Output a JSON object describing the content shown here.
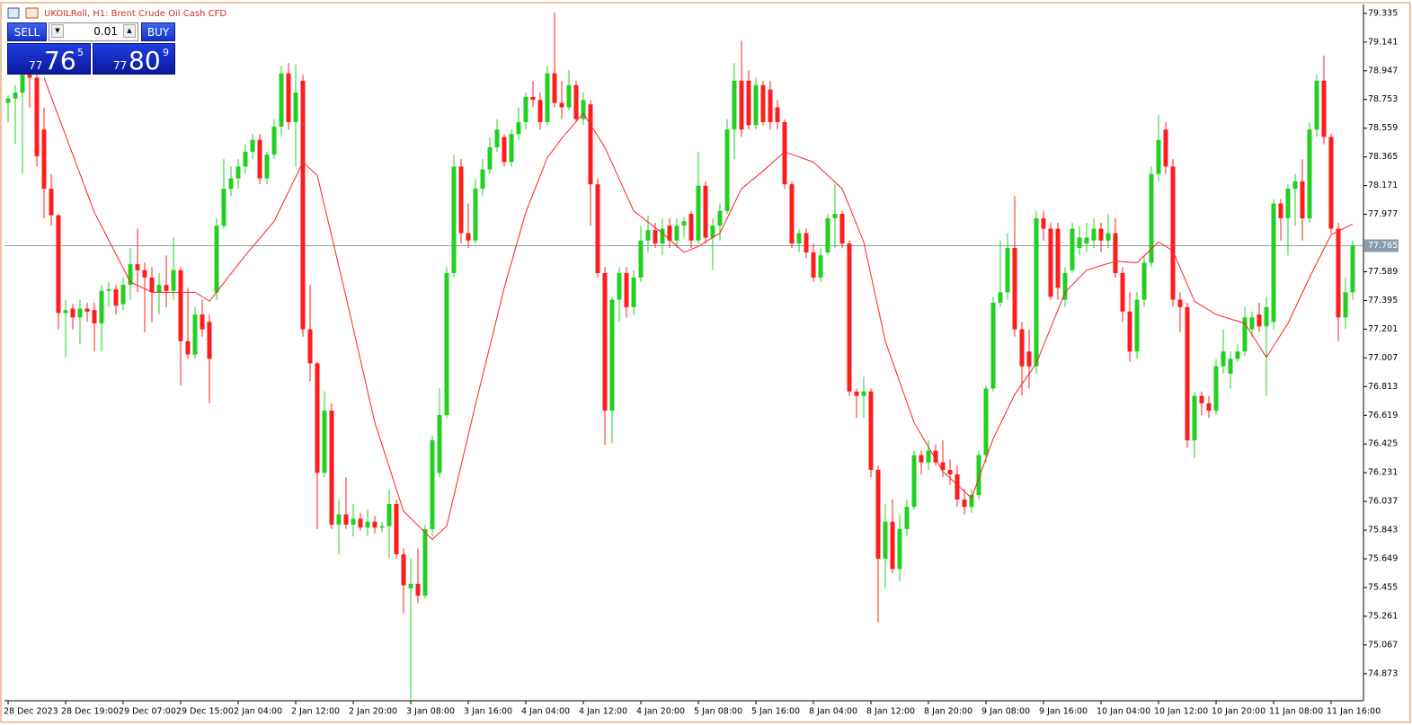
{
  "chart_data": {
    "type": "candlestick",
    "title": "UKOILRoll, H1:  Brent Crude Oil Cash CFD",
    "up_color": "#22d022",
    "down_color": "#ff1c1c",
    "ylim": [
      74.69,
      79.395
    ],
    "yticks": [
      79.335,
      79.141,
      78.947,
      78.753,
      78.559,
      78.365,
      78.171,
      77.977,
      77.589,
      77.395,
      77.201,
      77.007,
      76.813,
      76.619,
      76.425,
      76.231,
      76.037,
      75.843,
      75.649,
      75.455,
      75.261,
      75.067,
      74.873
    ],
    "grid": false,
    "price_line": {
      "value": 77.765,
      "color": "#8a9bab"
    },
    "categories": [
      "28 Dec 2023",
      null,
      null,
      null,
      null,
      null,
      null,
      null,
      "28 Dec 19:00",
      null,
      null,
      null,
      null,
      null,
      null,
      null,
      "29 Dec 07:00",
      null,
      null,
      null,
      null,
      null,
      null,
      null,
      "29 Dec 15:00",
      null,
      null,
      null,
      null,
      null,
      null,
      null,
      "2 Jan 04:00",
      null,
      null,
      null,
      null,
      null,
      null,
      null,
      "2 Jan 12:00",
      null,
      null,
      null,
      null,
      null,
      null,
      null,
      "2 Jan 20:00",
      null,
      null,
      null,
      null,
      null,
      null,
      null,
      "3 Jan 08:00",
      null,
      null,
      null,
      null,
      null,
      null,
      null,
      "3 Jan 16:00",
      null,
      null,
      null,
      null,
      null,
      null,
      null,
      "4 Jan 04:00",
      null,
      null,
      null,
      null,
      null,
      null,
      null,
      "4 Jan 12:00",
      null,
      null,
      null,
      null,
      null,
      null,
      null,
      "4 Jan 20:00",
      null,
      null,
      null,
      null,
      null,
      null,
      null,
      "5 Jan 08:00",
      null,
      null,
      null,
      null,
      null,
      null,
      null,
      "5 Jan 16:00",
      null,
      null,
      null,
      null,
      null,
      null,
      null,
      "8 Jan 04:00",
      null,
      null,
      null,
      null,
      null,
      null,
      null,
      "8 Jan 12:00",
      null,
      null,
      null,
      null,
      null,
      null,
      null,
      "8 Jan 20:00",
      null,
      null,
      null,
      null,
      null,
      null,
      null,
      "9 Jan 08:00",
      null,
      null,
      null,
      null,
      null,
      null,
      null,
      "9 Jan 16:00",
      null,
      null,
      null,
      null,
      null,
      null,
      null,
      "10 Jan 04:00",
      null,
      null,
      null,
      null,
      null,
      null,
      null,
      "10 Jan 12:00",
      null,
      null,
      null,
      null,
      null,
      null,
      null,
      "10 Jan 20:00",
      null,
      null,
      null,
      null,
      null,
      null,
      null,
      "11 Jan 08:00",
      null,
      null,
      null,
      null,
      null,
      null,
      null,
      "11 Jan 16:00",
      null,
      null,
      null
    ],
    "ohlc": [
      [
        78.73,
        78.78,
        78.6,
        78.76
      ],
      [
        78.76,
        78.85,
        78.45,
        78.8
      ],
      [
        78.8,
        78.95,
        78.25,
        78.92
      ],
      [
        78.92,
        78.95,
        78.7,
        78.9
      ],
      [
        78.9,
        78.93,
        78.3,
        78.37
      ],
      [
        78.55,
        78.7,
        77.95,
        78.15
      ],
      [
        78.15,
        78.25,
        77.9,
        77.97
      ],
      [
        77.97,
        77.98,
        77.2,
        77.31
      ],
      [
        77.31,
        77.4,
        77.01,
        77.33
      ],
      [
        77.34,
        77.37,
        77.2,
        77.28
      ],
      [
        77.28,
        77.4,
        77.1,
        77.34
      ],
      [
        77.34,
        77.38,
        77.25,
        77.32
      ],
      [
        77.33,
        77.38,
        77.05,
        77.24
      ],
      [
        77.24,
        77.5,
        77.05,
        77.46
      ],
      [
        77.46,
        77.52,
        77.35,
        77.47
      ],
      [
        77.47,
        77.5,
        77.3,
        77.36
      ],
      [
        77.37,
        77.55,
        77.33,
        77.5
      ],
      [
        77.5,
        77.75,
        77.4,
        77.64
      ],
      [
        77.64,
        77.88,
        77.45,
        77.6
      ],
      [
        77.6,
        77.65,
        77.18,
        77.55
      ],
      [
        77.55,
        77.62,
        77.25,
        77.45
      ],
      [
        77.45,
        77.58,
        77.3,
        77.5
      ],
      [
        77.5,
        77.7,
        77.35,
        77.46
      ],
      [
        77.46,
        77.82,
        77.4,
        77.6
      ],
      [
        77.6,
        77.62,
        76.82,
        77.12
      ],
      [
        77.12,
        77.48,
        77.0,
        77.03
      ],
      [
        77.03,
        77.35,
        77.0,
        77.3
      ],
      [
        77.3,
        77.4,
        77.15,
        77.2
      ],
      [
        77.25,
        77.3,
        76.7,
        77.0
      ],
      [
        77.45,
        77.95,
        77.4,
        77.9
      ],
      [
        77.9,
        78.35,
        77.88,
        78.15
      ],
      [
        78.15,
        78.3,
        78.1,
        78.22
      ],
      [
        78.22,
        78.35,
        78.15,
        78.3
      ],
      [
        78.3,
        78.45,
        78.25,
        78.4
      ],
      [
        78.4,
        78.52,
        78.35,
        78.48
      ],
      [
        78.48,
        78.52,
        78.18,
        78.22
      ],
      [
        78.22,
        78.4,
        78.18,
        78.38
      ],
      [
        78.38,
        78.62,
        78.35,
        78.57
      ],
      [
        78.57,
        78.98,
        78.5,
        78.93
      ],
      [
        78.93,
        79.0,
        78.55,
        78.6
      ],
      [
        78.6,
        78.99,
        78.3,
        78.8
      ],
      [
        78.88,
        78.92,
        77.15,
        77.2
      ],
      [
        77.2,
        77.5,
        76.85,
        76.97
      ],
      [
        76.97,
        76.98,
        75.85,
        76.23
      ],
      [
        76.23,
        76.78,
        76.2,
        76.65
      ],
      [
        76.65,
        76.7,
        75.85,
        75.88
      ],
      [
        75.88,
        76.05,
        75.68,
        75.95
      ],
      [
        75.95,
        76.2,
        75.85,
        75.88
      ],
      [
        75.88,
        76.02,
        75.8,
        75.92
      ],
      [
        75.92,
        75.96,
        75.84,
        75.86
      ],
      [
        75.86,
        75.98,
        75.8,
        75.9
      ],
      [
        75.9,
        75.94,
        75.82,
        75.86
      ],
      [
        75.86,
        75.9,
        75.83,
        75.87
      ],
      [
        75.87,
        76.12,
        75.65,
        76.02
      ],
      [
        76.02,
        76.05,
        75.65,
        75.68
      ],
      [
        75.68,
        75.72,
        75.28,
        75.47
      ],
      [
        75.45,
        75.65,
        74.7,
        75.48
      ],
      [
        75.48,
        75.72,
        75.35,
        75.4
      ],
      [
        75.4,
        75.88,
        75.38,
        75.85
      ],
      [
        75.85,
        76.48,
        75.8,
        76.45
      ],
      [
        76.23,
        76.8,
        76.2,
        76.62
      ],
      [
        76.62,
        77.62,
        76.6,
        77.58
      ],
      [
        77.58,
        78.38,
        77.55,
        78.3
      ],
      [
        78.3,
        78.35,
        77.78,
        77.85
      ],
      [
        77.85,
        78.05,
        77.75,
        77.8
      ],
      [
        77.8,
        78.22,
        77.78,
        78.15
      ],
      [
        78.15,
        78.35,
        78.1,
        78.28
      ],
      [
        78.28,
        78.5,
        78.25,
        78.43
      ],
      [
        78.43,
        78.62,
        78.4,
        78.55
      ],
      [
        78.5,
        78.52,
        78.3,
        78.33
      ],
      [
        78.33,
        78.55,
        78.3,
        78.52
      ],
      [
        78.52,
        78.7,
        78.48,
        78.6
      ],
      [
        78.6,
        78.8,
        78.55,
        78.77
      ],
      [
        78.77,
        78.88,
        78.7,
        78.75
      ],
      [
        78.75,
        78.8,
        78.55,
        78.6
      ],
      [
        78.6,
        78.98,
        78.58,
        78.93
      ],
      [
        78.93,
        79.34,
        78.7,
        78.73
      ],
      [
        78.73,
        78.88,
        78.62,
        78.7
      ],
      [
        78.7,
        78.95,
        78.68,
        78.85
      ],
      [
        78.85,
        78.88,
        78.6,
        78.62
      ],
      [
        78.62,
        78.8,
        78.58,
        78.75
      ],
      [
        78.72,
        78.75,
        77.9,
        78.18
      ],
      [
        78.18,
        78.22,
        77.55,
        77.58
      ],
      [
        77.58,
        77.62,
        76.42,
        76.65
      ],
      [
        76.65,
        77.42,
        76.43,
        77.4
      ],
      [
        77.4,
        77.62,
        77.25,
        77.58
      ],
      [
        77.58,
        77.62,
        77.28,
        77.35
      ],
      [
        77.35,
        77.6,
        77.3,
        77.55
      ],
      [
        77.55,
        77.9,
        77.52,
        77.8
      ],
      [
        77.8,
        77.97,
        77.72,
        77.87
      ],
      [
        77.87,
        77.92,
        77.75,
        77.78
      ],
      [
        77.78,
        77.95,
        77.7,
        77.88
      ],
      [
        77.9,
        77.95,
        77.75,
        77.8
      ],
      [
        77.8,
        77.95,
        77.75,
        77.9
      ],
      [
        77.9,
        77.96,
        77.82,
        77.93
      ],
      [
        77.98,
        78.0,
        77.75,
        77.8
      ],
      [
        77.8,
        78.4,
        77.78,
        78.17
      ],
      [
        78.17,
        78.2,
        77.78,
        77.82
      ],
      [
        77.82,
        77.95,
        77.6,
        77.9
      ],
      [
        77.9,
        78.05,
        77.8,
        78.0
      ],
      [
        78.0,
        78.62,
        77.98,
        78.55
      ],
      [
        78.55,
        79.0,
        78.35,
        78.88
      ],
      [
        78.88,
        79.15,
        78.5,
        78.55
      ],
      [
        78.88,
        78.95,
        78.55,
        78.58
      ],
      [
        78.58,
        78.9,
        78.55,
        78.85
      ],
      [
        78.85,
        78.88,
        78.58,
        78.6
      ],
      [
        78.82,
        78.88,
        78.55,
        78.6
      ],
      [
        78.7,
        78.75,
        78.55,
        78.6
      ],
      [
        78.6,
        78.62,
        78.15,
        78.18
      ],
      [
        78.18,
        78.2,
        77.75,
        77.78
      ],
      [
        77.78,
        77.88,
        77.72,
        77.85
      ],
      [
        77.85,
        77.88,
        77.68,
        77.72
      ],
      [
        77.72,
        77.78,
        77.52,
        77.55
      ],
      [
        77.55,
        77.75,
        77.52,
        77.7
      ],
      [
        77.72,
        77.98,
        77.7,
        77.95
      ],
      [
        77.95,
        78.18,
        77.75,
        77.98
      ],
      [
        77.98,
        78.0,
        77.75,
        77.78
      ],
      [
        77.78,
        77.8,
        76.75,
        76.78
      ],
      [
        76.78,
        76.8,
        76.6,
        76.75
      ],
      [
        76.75,
        76.88,
        76.6,
        76.78
      ],
      [
        76.78,
        76.8,
        76.2,
        76.25
      ],
      [
        76.25,
        76.28,
        75.22,
        75.65
      ],
      [
        75.65,
        76.02,
        75.45,
        75.9
      ],
      [
        75.9,
        76.05,
        75.55,
        75.58
      ],
      [
        75.58,
        75.95,
        75.5,
        75.85
      ],
      [
        75.85,
        76.05,
        75.8,
        76.0
      ],
      [
        76.0,
        76.38,
        75.98,
        76.35
      ],
      [
        76.35,
        76.38,
        76.22,
        76.3
      ],
      [
        76.3,
        76.45,
        76.25,
        76.38
      ],
      [
        76.38,
        76.42,
        76.28,
        76.3
      ],
      [
        76.3,
        76.45,
        76.2,
        76.25
      ],
      [
        76.25,
        76.32,
        76.15,
        76.22
      ],
      [
        76.22,
        76.28,
        76.0,
        76.05
      ],
      [
        76.05,
        76.12,
        75.95,
        76.0
      ],
      [
        76.0,
        76.12,
        75.96,
        76.08
      ],
      [
        76.08,
        76.38,
        76.05,
        76.35
      ],
      [
        76.35,
        76.82,
        76.3,
        76.8
      ],
      [
        76.8,
        77.42,
        76.78,
        77.38
      ],
      [
        77.38,
        77.8,
        77.35,
        77.45
      ],
      [
        77.45,
        77.85,
        77.4,
        77.75
      ],
      [
        77.75,
        78.1,
        77.15,
        77.2
      ],
      [
        77.2,
        77.25,
        76.75,
        76.95
      ],
      [
        77.05,
        77.2,
        76.8,
        76.95
      ],
      [
        76.95,
        78.0,
        76.9,
        77.95
      ],
      [
        77.95,
        78.0,
        77.8,
        77.88
      ],
      [
        77.88,
        77.92,
        77.4,
        77.42
      ],
      [
        77.88,
        77.92,
        77.4,
        77.48
      ],
      [
        77.4,
        77.62,
        77.35,
        77.58
      ],
      [
        77.6,
        77.92,
        77.58,
        77.88
      ],
      [
        77.75,
        77.9,
        77.7,
        77.82
      ],
      [
        77.78,
        77.92,
        77.72,
        77.82
      ],
      [
        77.8,
        77.95,
        77.75,
        77.88
      ],
      [
        77.88,
        77.92,
        77.72,
        77.8
      ],
      [
        77.8,
        77.98,
        77.75,
        77.85
      ],
      [
        77.85,
        77.95,
        77.55,
        77.58
      ],
      [
        77.58,
        77.62,
        77.25,
        77.32
      ],
      [
        77.32,
        77.45,
        76.98,
        77.05
      ],
      [
        77.05,
        77.45,
        77.0,
        77.4
      ],
      [
        77.4,
        77.7,
        77.35,
        77.65
      ],
      [
        77.65,
        78.3,
        77.62,
        78.25
      ],
      [
        78.25,
        78.65,
        78.2,
        78.48
      ],
      [
        78.55,
        78.6,
        78.25,
        78.3
      ],
      [
        78.3,
        78.35,
        77.35,
        77.4
      ],
      [
        77.4,
        77.45,
        77.18,
        77.35
      ],
      [
        77.35,
        77.38,
        76.4,
        76.45
      ],
      [
        76.45,
        76.78,
        76.33,
        76.75
      ],
      [
        76.75,
        76.78,
        76.62,
        76.7
      ],
      [
        76.7,
        76.75,
        76.6,
        76.65
      ],
      [
        76.65,
        77.0,
        76.62,
        76.95
      ],
      [
        76.95,
        77.2,
        76.9,
        77.05
      ],
      [
        76.9,
        77.05,
        76.8,
        77.0
      ],
      [
        77.0,
        77.1,
        76.98,
        77.05
      ],
      [
        77.05,
        77.35,
        77.02,
        77.28
      ],
      [
        77.2,
        77.32,
        77.15,
        77.28
      ],
      [
        77.3,
        77.38,
        77.18,
        77.22
      ],
      [
        77.22,
        77.42,
        76.75,
        77.35
      ],
      [
        77.25,
        78.08,
        77.2,
        78.05
      ],
      [
        78.05,
        78.08,
        77.8,
        77.95
      ],
      [
        77.95,
        78.18,
        77.7,
        78.15
      ],
      [
        78.15,
        78.25,
        77.9,
        78.2
      ],
      [
        78.2,
        78.35,
        77.8,
        77.95
      ],
      [
        77.95,
        78.6,
        77.92,
        78.55
      ],
      [
        78.55,
        78.92,
        78.5,
        78.88
      ],
      [
        78.88,
        79.05,
        78.45,
        78.5
      ],
      [
        78.5,
        78.52,
        77.85,
        77.88
      ],
      [
        77.88,
        77.92,
        77.12,
        77.28
      ],
      [
        77.28,
        77.55,
        77.2,
        77.45
      ],
      [
        77.45,
        77.8,
        77.4,
        77.765
      ]
    ],
    "ma": {
      "color": "#ff2020",
      "x": [
        5,
        12,
        17,
        20,
        26,
        28,
        33,
        37,
        41,
        43,
        47,
        51,
        55,
        59,
        61,
        65,
        69,
        72,
        75,
        77,
        80,
        83,
        87,
        91,
        94,
        96,
        99,
        102,
        105,
        108,
        112,
        116,
        119,
        122,
        126,
        130,
        134,
        137,
        140,
        143,
        147,
        150,
        154,
        157,
        160,
        162,
        165,
        168,
        172,
        175,
        178,
        181,
        184,
        187
      ],
      "values": [
        78.9,
        77.99,
        77.52,
        77.45,
        77.45,
        77.39,
        77.7,
        77.93,
        78.33,
        78.24,
        77.42,
        76.57,
        75.97,
        75.78,
        75.87,
        76.69,
        77.48,
        77.99,
        78.36,
        78.49,
        78.66,
        78.43,
        78.0,
        77.85,
        77.72,
        77.76,
        77.85,
        78.15,
        78.27,
        78.4,
        78.33,
        78.15,
        77.79,
        77.12,
        76.57,
        76.24,
        76.06,
        76.46,
        76.76,
        76.97,
        77.45,
        77.6,
        77.66,
        77.65,
        77.79,
        77.73,
        77.39,
        77.3,
        77.24,
        77.01,
        77.24,
        77.55,
        77.84,
        77.91
      ]
    }
  },
  "trade_panel": {
    "sell": "SELL",
    "buy": "BUY",
    "lot": "0.01",
    "sell_price": {
      "prefix": "77",
      "big": "76",
      "sup": "5"
    },
    "buy_price": {
      "prefix": "77",
      "big": "80",
      "sup": "9"
    }
  }
}
